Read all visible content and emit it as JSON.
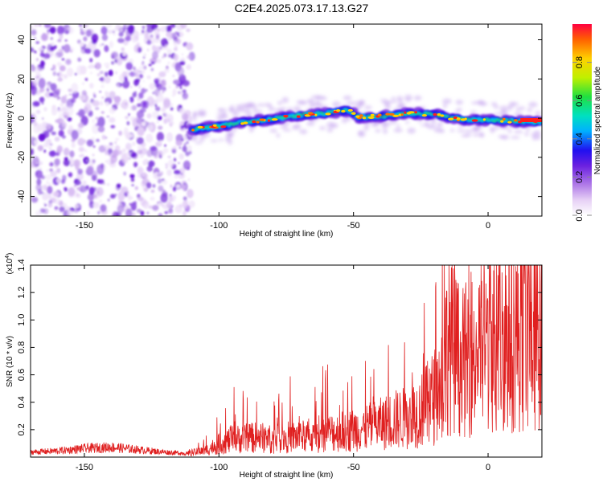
{
  "title": "C2E4.2025.073.17.13.G27",
  "chart_data": [
    {
      "type": "heatmap",
      "xlabel": "Height of straight line (km)",
      "ylabel": "Frequency (Hz)",
      "xlim": [
        -170,
        20
      ],
      "ylim": [
        -50,
        48
      ],
      "x_ticks": [
        -150,
        -100,
        -50,
        0
      ],
      "x_tick_labels": [
        "-150",
        "-100",
        "-50",
        "0"
      ],
      "y_ticks": [
        -40,
        -20,
        0,
        20,
        40
      ],
      "y_tick_labels": [
        "-40",
        "-20",
        "0",
        "20",
        "40"
      ],
      "noise_region_x": [
        -170,
        -110
      ],
      "signal_track": {
        "x": [
          -110,
          -100,
          -90,
          -80,
          -70,
          -60,
          -52,
          -48,
          -40,
          -30,
          -20,
          -15,
          -10,
          0,
          10,
          20
        ],
        "frequency": [
          -6,
          -4,
          -2,
          -0.5,
          1.5,
          2.5,
          4,
          0.5,
          1,
          2.5,
          2,
          0.5,
          -0.5,
          -1,
          -1.5,
          -2
        ]
      },
      "colorbar": {
        "label": "Normalized spectral amplitude",
        "range": [
          0,
          1
        ],
        "ticks": [
          0.0,
          0.2,
          0.4,
          0.6,
          0.8
        ],
        "tick_labels": [
          "0.0",
          "0.2",
          "0.4",
          "0.6",
          "0.8"
        ],
        "colors": [
          "#ffffff",
          "#c9a6ee",
          "#7a3ee0",
          "#2010f0",
          "#00c8ff",
          "#00e070",
          "#b0f000",
          "#ffe000",
          "#ff8000",
          "#ff0000"
        ]
      },
      "grid": false
    },
    {
      "type": "line",
      "xlabel": "Height of straight line (km)",
      "ylabel": "SNR (10 * v/v)",
      "y_scale_label": "(x10",
      "y_scale_exp": "4",
      "y_scale_close": ")",
      "xlim": [
        -170,
        20
      ],
      "ylim": [
        0,
        1.4
      ],
      "x_ticks": [
        -150,
        -100,
        -50,
        0
      ],
      "x_tick_labels": [
        "-150",
        "-100",
        "-50",
        "0"
      ],
      "y_ticks": [
        0.2,
        0.4,
        0.6,
        0.8,
        1.0,
        1.2,
        1.4
      ],
      "y_tick_labels": [
        "0.2",
        "0.4",
        "0.6",
        "0.8",
        "1.0",
        "1.2",
        "1.4"
      ],
      "series": [
        {
          "color": "#e02020",
          "x": [
            -170,
            -160,
            -150,
            -140,
            -130,
            -120,
            -112,
            -105,
            -100,
            -95,
            -90,
            -85,
            -80,
            -75,
            -70,
            -65,
            -60,
            -55,
            -50,
            -45,
            -40,
            -35,
            -30,
            -25,
            -22,
            -19,
            -17,
            -15,
            -12,
            -10,
            -5,
            0,
            5,
            10,
            15,
            20
          ],
          "y": [
            0.04,
            0.05,
            0.07,
            0.08,
            0.06,
            0.04,
            0.03,
            0.06,
            0.12,
            0.16,
            0.17,
            0.18,
            0.16,
            0.18,
            0.19,
            0.18,
            0.22,
            0.23,
            0.25,
            0.27,
            0.3,
            0.34,
            0.36,
            0.42,
            0.5,
            0.58,
            0.7,
            1.05,
            0.95,
            0.85,
            0.95,
            1.02,
            1.05,
            1.12,
            1.18,
            1.22
          ]
        }
      ],
      "grid": false
    }
  ]
}
